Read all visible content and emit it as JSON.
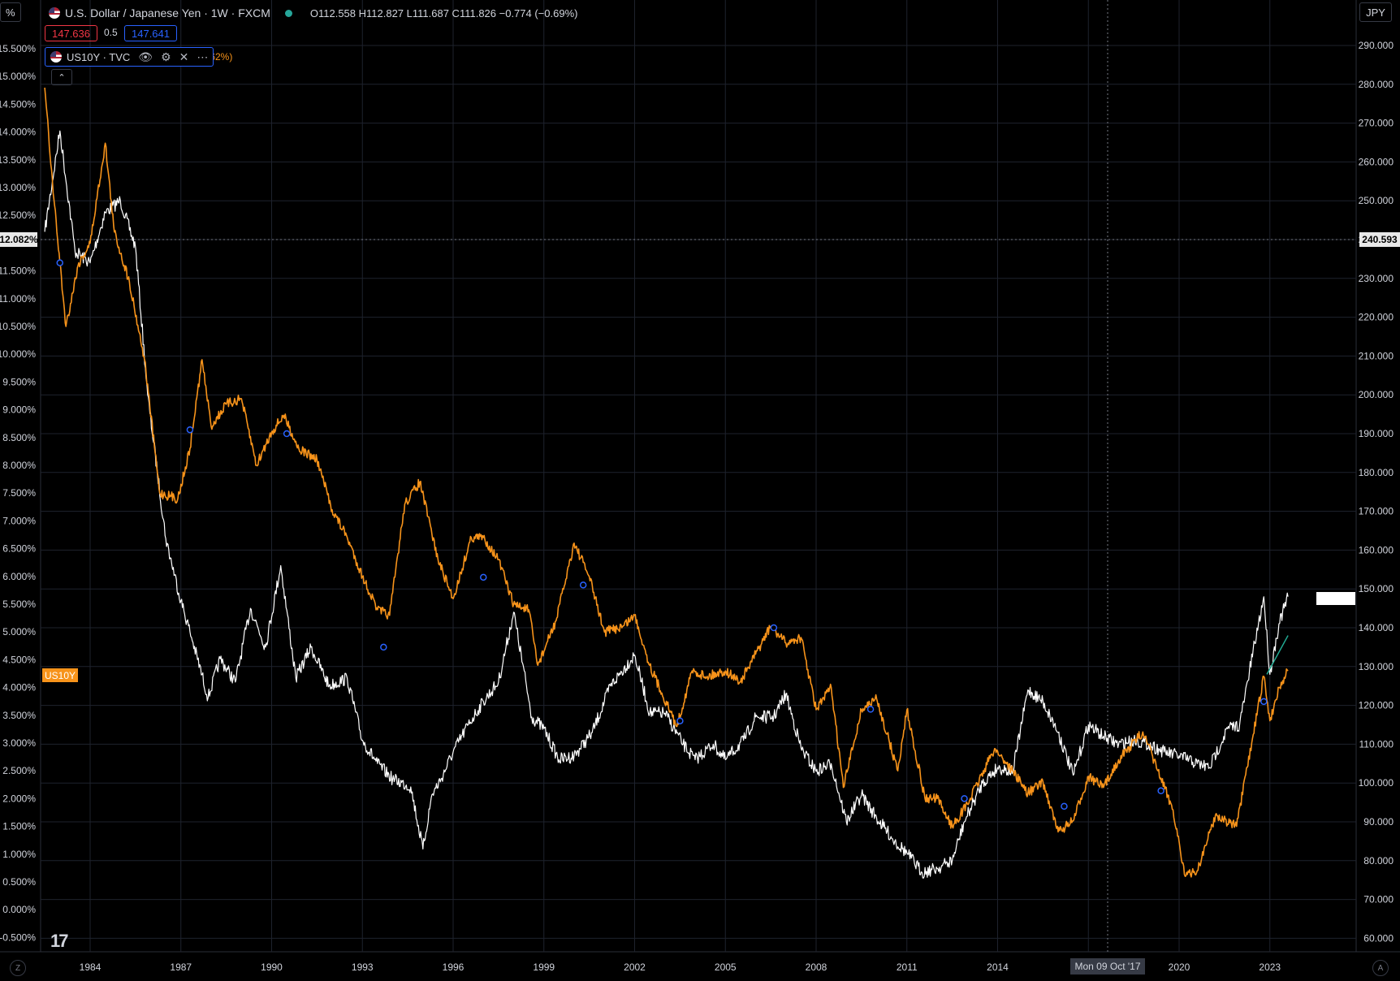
{
  "header": {
    "symbol_title": "U.S. Dollar / Japanese Yen · 1W · FXCM",
    "ohlc": "O112.558 H112.827 L111.687 C111.826 −0.774 (−0.69%)",
    "sell_price": "147.636",
    "spread": "0.5",
    "buy_price": "147.641",
    "left_corner": "%",
    "currency_button": "JPY"
  },
  "indicator": {
    "name": "US10Y · TVC",
    "partial_value": ".62%)",
    "collapse_glyph": "⌃",
    "icons": [
      "eye-icon",
      "settings-icon",
      "close-icon",
      "more-icon"
    ]
  },
  "tags": {
    "us10y_label": "US10Y",
    "left_price": "12.082%",
    "right_price": "240.593",
    "crosshair_date": "Mon 09 Oct '17"
  },
  "footer": {
    "left_corner": "Z",
    "right_corner": "A",
    "logo": "17"
  },
  "colors": {
    "usdjpy": "#ffffff",
    "us10y": "#f7931a",
    "grid": "#1e222d",
    "sell": "#f23645",
    "buy": "#2962ff",
    "markers": "#2962ff"
  },
  "chart_data": {
    "type": "line",
    "x_ticks": [
      "1984",
      "1987",
      "1990",
      "1993",
      "1996",
      "1999",
      "2002",
      "2005",
      "2008",
      "2011",
      "2014",
      "2017",
      "2020",
      "2023"
    ],
    "left_axis_ticks": [
      "15.500%",
      "15.000%",
      "14.500%",
      "14.000%",
      "13.500%",
      "13.000%",
      "12.500%",
      "12.000%",
      "11.500%",
      "11.000%",
      "10.500%",
      "10.000%",
      "9.500%",
      "9.000%",
      "8.500%",
      "8.000%",
      "7.500%",
      "7.000%",
      "6.500%",
      "6.000%",
      "5.500%",
      "5.000%",
      "4.500%",
      "4.000%",
      "3.500%",
      "3.000%",
      "2.500%",
      "2.000%",
      "1.500%",
      "1.000%",
      "0.500%",
      "0.000%",
      "-0.500%"
    ],
    "right_axis_ticks": [
      "290.000",
      "280.000",
      "270.000",
      "260.000",
      "250.000",
      "240.000",
      "230.000",
      "220.000",
      "210.000",
      "200.000",
      "190.000",
      "180.000",
      "170.000",
      "160.000",
      "150.000",
      "140.000",
      "130.000",
      "120.000",
      "110.000",
      "100.000",
      "90.000",
      "80.000",
      "70.000",
      "60.000"
    ],
    "left_ylim": [
      -0.5,
      15.5
    ],
    "right_ylim": [
      60,
      290
    ],
    "grid": true,
    "series": [
      {
        "name": "USDJPY",
        "axis": "right",
        "x": [
          1982.5,
          1983.0,
          1983.5,
          1984.0,
          1984.5,
          1985.0,
          1985.5,
          1985.9,
          1986.5,
          1987.0,
          1987.3,
          1987.9,
          1988.3,
          1988.8,
          1989.3,
          1989.8,
          1990.3,
          1990.8,
          1991.3,
          1991.9,
          1992.5,
          1993.0,
          1993.5,
          1994.0,
          1994.6,
          1995.0,
          1995.3,
          1995.6,
          1996.0,
          1996.5,
          1997.0,
          1997.5,
          1998.0,
          1998.6,
          1999.0,
          1999.5,
          2000.0,
          2000.6,
          2001.2,
          2002.0,
          2002.5,
          2003.0,
          2003.6,
          2004.0,
          2004.6,
          2005.0,
          2005.6,
          2006.0,
          2006.6,
          2007.0,
          2007.5,
          2008.0,
          2008.5,
          2009.0,
          2009.5,
          2010.0,
          2010.6,
          2011.0,
          2011.5,
          2012.0,
          2012.5,
          2012.9,
          2013.5,
          2014.0,
          2014.5,
          2015.0,
          2015.5,
          2016.0,
          2016.5,
          2017.0,
          2017.5,
          2018.0,
          2018.5,
          2019.0,
          2019.5,
          2020.0,
          2020.6,
          2021.0,
          2021.6,
          2022.0,
          2022.5,
          2022.8,
          2023.0,
          2023.3,
          2023.6
        ],
        "values": [
          242,
          268,
          237,
          234,
          247,
          250,
          238,
          200,
          163,
          147,
          139,
          122,
          132,
          126,
          145,
          135,
          156,
          127,
          135,
          125,
          127,
          111,
          105,
          101,
          99,
          83,
          97,
          101,
          108,
          115,
          121,
          126,
          144,
          117,
          114,
          106,
          107,
          113,
          125,
          133,
          118,
          118,
          110,
          106,
          110,
          106,
          111,
          117,
          117,
          123,
          109,
          103,
          105,
          90,
          97,
          91,
          85,
          82,
          77,
          78,
          80,
          90,
          100,
          104,
          103,
          124,
          121,
          113,
          102,
          115,
          112,
          110,
          111,
          110,
          108,
          107,
          105,
          104,
          114,
          115,
          136,
          148,
          128,
          141,
          148
        ]
      },
      {
        "name": "US10Y",
        "axis": "left",
        "x": [
          1982.5,
          1982.8,
          1983.2,
          1983.6,
          1984.0,
          1984.5,
          1984.8,
          1985.3,
          1985.8,
          1986.3,
          1986.9,
          1987.3,
          1987.7,
          1988.0,
          1988.5,
          1989.0,
          1989.5,
          1990.0,
          1990.4,
          1990.9,
          1991.5,
          1992.0,
          1992.5,
          1993.0,
          1993.5,
          1993.9,
          1994.4,
          1994.9,
          1995.5,
          1996.0,
          1996.6,
          1997.0,
          1997.5,
          1998.0,
          1998.5,
          1998.8,
          1999.4,
          2000.0,
          2000.5,
          2001.0,
          2001.6,
          2002.0,
          2002.5,
          2002.9,
          2003.4,
          2003.9,
          2004.4,
          2005.0,
          2005.5,
          2006.0,
          2006.5,
          2007.0,
          2007.5,
          2008.0,
          2008.5,
          2008.9,
          2009.5,
          2010.0,
          2010.7,
          2011.0,
          2011.6,
          2012.0,
          2012.5,
          2013.0,
          2013.9,
          2014.5,
          2015.0,
          2015.5,
          2016.0,
          2016.5,
          2017.0,
          2017.5,
          2018.0,
          2018.8,
          2019.3,
          2019.8,
          2020.2,
          2020.6,
          2021.2,
          2021.9,
          2022.4,
          2022.8,
          2023.0,
          2023.3,
          2023.6
        ],
        "values": [
          14.8,
          12.8,
          10.5,
          11.6,
          12.0,
          13.8,
          12.2,
          11.3,
          9.9,
          7.5,
          7.4,
          8.3,
          9.9,
          8.7,
          9.1,
          9.2,
          8.0,
          8.6,
          8.9,
          8.3,
          8.1,
          7.2,
          6.7,
          6.0,
          5.4,
          5.3,
          7.3,
          7.7,
          6.3,
          5.6,
          6.7,
          6.7,
          6.3,
          5.5,
          5.4,
          4.4,
          5.2,
          6.6,
          6.0,
          5.0,
          5.1,
          5.3,
          4.4,
          3.9,
          3.3,
          4.3,
          4.2,
          4.3,
          4.1,
          4.6,
          5.1,
          4.8,
          4.9,
          3.6,
          4.0,
          2.2,
          3.6,
          3.8,
          2.5,
          3.6,
          2.0,
          2.0,
          1.5,
          1.9,
          2.9,
          2.5,
          2.1,
          2.3,
          1.4,
          1.6,
          2.4,
          2.2,
          2.7,
          3.2,
          2.5,
          1.8,
          0.6,
          0.7,
          1.7,
          1.5,
          3.0,
          4.2,
          3.4,
          4.0,
          4.3
        ]
      }
    ],
    "markers_usdjpy": [
      {
        "x": 1983.0,
        "y": 234
      },
      {
        "x": 1987.3,
        "y": 191
      },
      {
        "x": 1990.5,
        "y": 190
      },
      {
        "x": 1993.7,
        "y": 135
      },
      {
        "x": 1997.0,
        "y": 153
      },
      {
        "x": 2000.3,
        "y": 151
      },
      {
        "x": 2003.5,
        "y": 116
      },
      {
        "x": 2006.6,
        "y": 140
      },
      {
        "x": 2009.8,
        "y": 119
      },
      {
        "x": 2012.9,
        "y": 96
      },
      {
        "x": 2016.2,
        "y": 94
      },
      {
        "x": 2019.4,
        "y": 98
      },
      {
        "x": 2022.8,
        "y": 121
      }
    ]
  }
}
